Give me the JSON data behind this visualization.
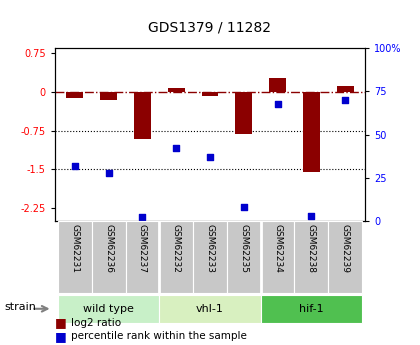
{
  "title": "GDS1379 / 11282",
  "samples": [
    "GSM62231",
    "GSM62236",
    "GSM62237",
    "GSM62232",
    "GSM62233",
    "GSM62235",
    "GSM62234",
    "GSM62238",
    "GSM62239"
  ],
  "log2_ratio": [
    -0.12,
    -0.15,
    -0.92,
    0.07,
    -0.07,
    -0.82,
    0.28,
    -1.55,
    0.12
  ],
  "percentile_rank": [
    32,
    28,
    2,
    42,
    37,
    8,
    68,
    3,
    70
  ],
  "ylim_left": [
    -2.5,
    0.85
  ],
  "ylim_right": [
    0,
    100
  ],
  "yticks_left": [
    0.75,
    0,
    -0.75,
    -1.5,
    -2.25
  ],
  "yticks_right": [
    100,
    75,
    50,
    25,
    0
  ],
  "bar_color": "#8B0000",
  "dot_color": "#0000CD",
  "bar_width": 0.5,
  "groups": [
    {
      "label": "wild type",
      "indices": [
        0,
        1,
        2
      ],
      "color": "#c8f0c8"
    },
    {
      "label": "vhl-1",
      "indices": [
        3,
        4,
        5
      ],
      "color": "#d8f0c0"
    },
    {
      "label": "hif-1",
      "indices": [
        6,
        7,
        8
      ],
      "color": "#50c050"
    }
  ],
  "strain_label": "strain",
  "legend_bar_label": "log2 ratio",
  "legend_dot_label": "percentile rank within the sample",
  "background_color": "#ffffff",
  "sample_box_color": "#c8c8c8"
}
